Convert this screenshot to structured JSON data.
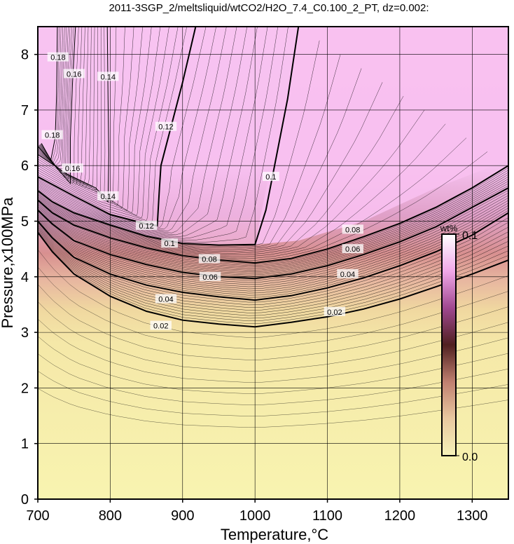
{
  "chart_data": {
    "type": "heatmap",
    "title": "2011-3SGP_2/meltsliquid/wtCO2/H2O_7.4_C0.100_2_PT, dz=0.002:",
    "xlabel": "Temperature,°C",
    "ylabel": "Pressure,x100MPa",
    "xlim": [
      700,
      1350
    ],
    "ylim": [
      0,
      8.5
    ],
    "x_ticks": [
      700,
      800,
      900,
      1000,
      1100,
      1200,
      1300
    ],
    "y_ticks": [
      0,
      1,
      2,
      3,
      4,
      5,
      6,
      7,
      8
    ],
    "grid": true,
    "colorbar": {
      "title": "wt%",
      "min_label": "0.0",
      "max_label": "0.1",
      "min": 0.0,
      "max": 0.1,
      "colors": [
        "#f6f2b8",
        "#e8c8a0",
        "#c08070",
        "#502020",
        "#a04890",
        "#f0a8e8",
        "#ffffff"
      ]
    },
    "field_colors": {
      "low": "#f8f4b0",
      "mid": "#e8a098",
      "high": "#f8c0f0"
    },
    "contour_interval": 0.002,
    "contours": [
      {
        "level": 0.02,
        "label": "0.02",
        "bold": true,
        "points": [
          [
            700,
            4.8
          ],
          [
            720,
            4.45
          ],
          [
            750,
            4.05
          ],
          [
            800,
            3.65
          ],
          [
            850,
            3.38
          ],
          [
            900,
            3.22
          ],
          [
            950,
            3.15
          ],
          [
            1000,
            3.1
          ],
          [
            1050,
            3.18
          ],
          [
            1100,
            3.28
          ],
          [
            1150,
            3.42
          ],
          [
            1200,
            3.6
          ],
          [
            1250,
            3.82
          ],
          [
            1300,
            4.05
          ],
          [
            1350,
            4.3
          ]
        ],
        "labels_at": [
          [
            870,
            3.12
          ],
          [
            1110,
            3.37
          ]
        ]
      },
      {
        "level": 0.04,
        "label": "0.04",
        "bold": true,
        "points": [
          [
            700,
            5.0
          ],
          [
            720,
            4.7
          ],
          [
            750,
            4.35
          ],
          [
            800,
            4.05
          ],
          [
            850,
            3.85
          ],
          [
            900,
            3.72
          ],
          [
            950,
            3.64
          ],
          [
            1000,
            3.58
          ],
          [
            1050,
            3.66
          ],
          [
            1100,
            3.8
          ],
          [
            1150,
            3.98
          ],
          [
            1200,
            4.2
          ],
          [
            1250,
            4.45
          ],
          [
            1300,
            4.75
          ],
          [
            1350,
            5.15
          ]
        ],
        "labels_at": [
          [
            877,
            3.6
          ],
          [
            1128,
            4.05
          ]
        ]
      },
      {
        "level": 0.06,
        "label": "0.06",
        "bold": true,
        "points": [
          [
            700,
            5.2
          ],
          [
            720,
            4.95
          ],
          [
            750,
            4.65
          ],
          [
            800,
            4.4
          ],
          [
            850,
            4.22
          ],
          [
            900,
            4.08
          ],
          [
            950,
            4.0
          ],
          [
            1000,
            3.97
          ],
          [
            1050,
            4.05
          ],
          [
            1100,
            4.2
          ],
          [
            1150,
            4.4
          ],
          [
            1200,
            4.63
          ],
          [
            1250,
            4.9
          ],
          [
            1300,
            5.25
          ],
          [
            1350,
            5.6
          ]
        ],
        "labels_at": [
          [
            938,
            4.0
          ],
          [
            1135,
            4.5
          ]
        ]
      },
      {
        "level": 0.08,
        "label": "0.08",
        "bold": true,
        "points": [
          [
            700,
            5.38
          ],
          [
            720,
            5.15
          ],
          [
            750,
            4.93
          ],
          [
            800,
            4.7
          ],
          [
            850,
            4.52
          ],
          [
            900,
            4.38
          ],
          [
            950,
            4.3
          ],
          [
            1000,
            4.25
          ],
          [
            1050,
            4.33
          ],
          [
            1100,
            4.5
          ],
          [
            1150,
            4.72
          ],
          [
            1200,
            4.96
          ],
          [
            1250,
            5.25
          ],
          [
            1300,
            5.6
          ],
          [
            1350,
            6.0
          ]
        ],
        "labels_at": [
          [
            937,
            4.32
          ],
          [
            1135,
            4.85
          ]
        ]
      },
      {
        "level": 0.1,
        "label": "0.1",
        "bold": true,
        "points": [
          [
            700,
            5.55
          ],
          [
            720,
            5.35
          ],
          [
            750,
            5.15
          ],
          [
            800,
            4.93
          ],
          [
            850,
            4.73
          ],
          [
            900,
            4.6
          ],
          [
            950,
            4.57
          ],
          [
            1000,
            4.58
          ],
          [
            1015,
            5.2
          ],
          [
            1030,
            6.2
          ],
          [
            1045,
            7.2
          ],
          [
            1060,
            8.5
          ]
        ],
        "labels_at": [
          [
            882,
            4.6
          ],
          [
            1022,
            5.8
          ]
        ]
      },
      {
        "level": 0.12,
        "label": "0.12",
        "bold": true,
        "points": [
          [
            700,
            5.8
          ],
          [
            750,
            5.45
          ],
          [
            800,
            5.12
          ],
          [
            850,
            4.95
          ],
          [
            865,
            4.92
          ],
          [
            868,
            5.6
          ],
          [
            870,
            6.0
          ],
          [
            900,
            7.5
          ],
          [
            918,
            8.5
          ]
        ],
        "labels_at": [
          [
            850,
            4.92
          ],
          [
            877,
            6.7
          ]
        ]
      },
      {
        "level": 0.14,
        "label": "0.14",
        "bold": false,
        "points": [
          [
            700,
            6.2
          ],
          [
            740,
            5.85
          ],
          [
            780,
            5.6
          ],
          [
            797,
            5.35
          ],
          [
            798,
            6.2
          ],
          [
            797,
            7.2
          ],
          [
            796,
            8.5
          ]
        ],
        "labels_at": [
          [
            797,
            5.45
          ],
          [
            797,
            7.6
          ]
        ]
      },
      {
        "level": 0.16,
        "label": "0.16",
        "bold": false,
        "points": [
          [
            700,
            6.35
          ],
          [
            730,
            5.9
          ],
          [
            745,
            5.68
          ],
          [
            745,
            6.5
          ],
          [
            748,
            7.5
          ],
          [
            752,
            8.5
          ]
        ],
        "labels_at": [
          [
            748,
            5.95
          ],
          [
            750,
            7.65
          ]
        ]
      },
      {
        "level": 0.18,
        "label": "0.18",
        "bold": false,
        "points": [
          [
            705,
            6.4
          ],
          [
            718,
            6.1
          ],
          [
            724,
            6.5
          ],
          [
            726,
            7.3
          ],
          [
            727,
            8.5
          ]
        ],
        "labels_at": [
          [
            720,
            6.55
          ],
          [
            728,
            7.95
          ]
        ]
      }
    ]
  }
}
